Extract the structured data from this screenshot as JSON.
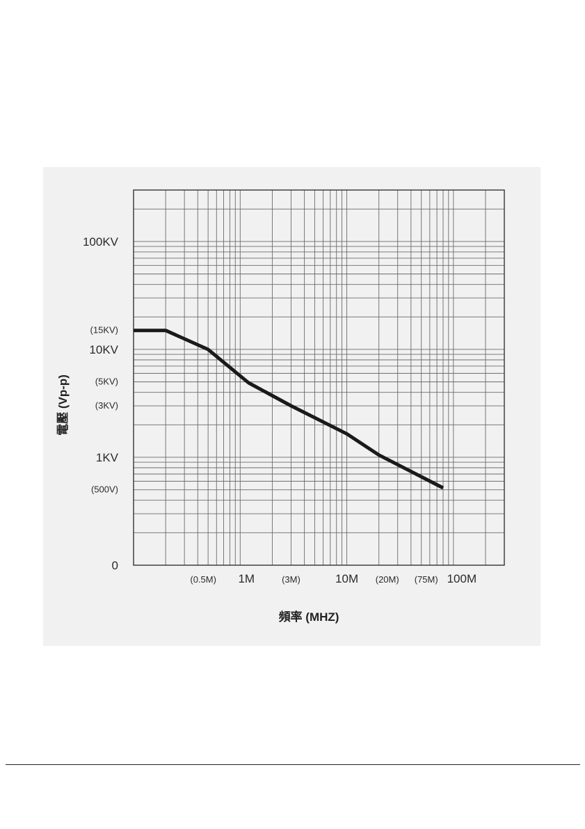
{
  "chart_data": {
    "type": "line",
    "title": "",
    "xlabel": "頻率 (MHZ)",
    "ylabel": "電壓 (Vp-p)",
    "x_scale": "log",
    "y_scale": "log",
    "xlim_mhz": [
      0.1,
      300
    ],
    "ylim_kv": [
      0.1,
      300
    ],
    "grid": true,
    "x_ticks": [
      {
        "mhz": 0.5,
        "label": "(0.5M)",
        "major": false
      },
      {
        "mhz": 1,
        "label": "1M",
        "major": true
      },
      {
        "mhz": 3,
        "label": "(3M)",
        "major": false
      },
      {
        "mhz": 10,
        "label": "10M",
        "major": true
      },
      {
        "mhz": 20,
        "label": "(20M)",
        "major": false
      },
      {
        "mhz": 75,
        "label": "(75M)",
        "major": false
      },
      {
        "mhz": 100,
        "label": "100M",
        "major": true
      }
    ],
    "y_ticks": [
      {
        "kv": 100,
        "label": "100KV",
        "major": true
      },
      {
        "kv": 15,
        "label": "(15KV)",
        "major": false
      },
      {
        "kv": 10,
        "label": "10KV",
        "major": true
      },
      {
        "kv": 5,
        "label": "(5KV)",
        "major": false
      },
      {
        "kv": 3,
        "label": "(3KV)",
        "major": false
      },
      {
        "kv": 1,
        "label": "1KV",
        "major": true
      },
      {
        "kv": 0.5,
        "label": "(500V)",
        "major": false
      },
      {
        "kv": 0.1,
        "label": "0",
        "major": true
      }
    ],
    "series": [
      {
        "name": "",
        "x_mhz": [
          0.1,
          0.2,
          0.5,
          1.2,
          3,
          10,
          20,
          80
        ],
        "y_kv": [
          15,
          15,
          10,
          4.9,
          3,
          1.65,
          1.05,
          0.52
        ]
      }
    ]
  }
}
